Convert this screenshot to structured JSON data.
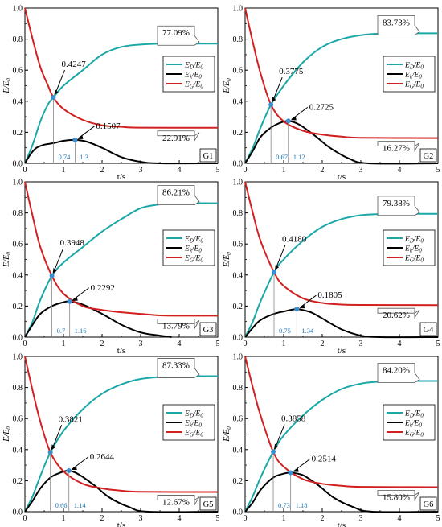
{
  "figure_panels": [
    {
      "tag": "G1",
      "E_D_final": "77.09%",
      "E_G_final": "22.91%",
      "cross1_val": "0.4247",
      "cross1_t": "0.74",
      "kmax_val": "0.1507",
      "kmax_t": "1.3"
    },
    {
      "tag": "G2",
      "E_D_final": "83.73%",
      "E_G_final": "16.27%",
      "cross1_val": "0.3775",
      "cross1_t": "0.67",
      "kmax_val": "0.2725",
      "kmax_t": "1.12"
    },
    {
      "tag": "G3",
      "E_D_final": "86.21%",
      "E_G_final": "13.79%",
      "cross1_val": "0.3948",
      "cross1_t": "0.7",
      "kmax_val": "0.2292",
      "kmax_t": "1.16"
    },
    {
      "tag": "G4",
      "E_D_final": "79.38%",
      "E_G_final": "20.62%",
      "cross1_val": "0.4180",
      "cross1_t": "0.75",
      "kmax_val": "0.1805",
      "kmax_t": "1.34"
    },
    {
      "tag": "G5",
      "E_D_final": "87.33%",
      "E_G_final": "12.67%",
      "cross1_val": "0.3821",
      "cross1_t": "0.66",
      "kmax_val": "0.2644",
      "kmax_t": "1.14"
    },
    {
      "tag": "G6",
      "E_D_final": "84.20%",
      "E_G_final": "15.80%",
      "cross1_val": "0.3858",
      "cross1_t": "0.73",
      "kmax_val": "0.2514",
      "kmax_t": "1.18"
    }
  ],
  "chart_data": [
    {
      "type": "line",
      "tag": "G1",
      "xlabel": "t/s",
      "ylabel": "E/E0",
      "xlim": [
        0,
        5
      ],
      "ylim": [
        0,
        1.0
      ],
      "xticks": [
        "0",
        "1",
        "2",
        "3",
        "4",
        "5"
      ],
      "yticks": [
        "0.0",
        "0.2",
        "0.4",
        "0.6",
        "0.8",
        "1.0"
      ],
      "legend": [
        "ED/E0",
        "Ek/E0",
        "EG/E0"
      ],
      "legend_position": "right-middle",
      "series": [
        {
          "name": "ED/E0",
          "color": "#1aa7a7",
          "x": [
            0,
            0.2,
            0.4,
            0.6,
            0.74,
            1.0,
            1.5,
            2.0,
            2.5,
            3.0,
            3.5,
            4.0,
            5.0
          ],
          "values": [
            0,
            0.12,
            0.27,
            0.38,
            0.4247,
            0.5,
            0.6,
            0.7,
            0.75,
            0.765,
            0.7709,
            0.7709,
            0.7709
          ]
        },
        {
          "name": "Ek/E0",
          "color": "#000000",
          "x": [
            0,
            0.15,
            0.3,
            0.5,
            0.74,
            1.0,
            1.3,
            1.6,
            2.0,
            2.5,
            3.0,
            3.5,
            5.0
          ],
          "values": [
            0,
            0.06,
            0.1,
            0.12,
            0.13,
            0.145,
            0.1507,
            0.14,
            0.1,
            0.04,
            0.01,
            0,
            0
          ]
        },
        {
          "name": "EG/E0",
          "color": "#d22020",
          "x": [
            0,
            0.2,
            0.4,
            0.6,
            0.74,
            1.0,
            1.5,
            2.0,
            2.5,
            3.0,
            5.0
          ],
          "values": [
            1.0,
            0.8,
            0.62,
            0.5,
            0.4247,
            0.35,
            0.28,
            0.245,
            0.235,
            0.23,
            0.2291
          ]
        }
      ],
      "annotations": [
        {
          "text": "0.4247",
          "x": 0.74,
          "y": 0.4247
        },
        {
          "text": "0.1507",
          "x": 1.3,
          "y": 0.1507
        },
        {
          "text": "77.09%",
          "x": 4.5,
          "y": 0.7709
        },
        {
          "text": "22.91%",
          "x": 4.5,
          "y": 0.2291
        },
        {
          "text": "0.74",
          "x": 0.74,
          "y": 0
        },
        {
          "text": "1.3",
          "x": 1.3,
          "y": 0
        }
      ]
    },
    {
      "type": "line",
      "tag": "G2",
      "xlabel": "t/s",
      "ylabel": "E/E0",
      "xlim": [
        0,
        5
      ],
      "ylim": [
        0,
        1.0
      ],
      "xticks": [
        "0",
        "1",
        "2",
        "3",
        "4",
        "5"
      ],
      "yticks": [
        "0.0",
        "0.2",
        "0.4",
        "0.6",
        "0.8",
        "1.0"
      ],
      "legend": [
        "ED/E0",
        "Ek/E0",
        "EG/E0"
      ],
      "legend_position": "right-middle",
      "series": [
        {
          "name": "ED/E0",
          "color": "#1aa7a7",
          "x": [
            0,
            0.2,
            0.4,
            0.67,
            1.0,
            1.5,
            2.0,
            2.5,
            3.0,
            3.5,
            4.0,
            5.0
          ],
          "values": [
            0,
            0.1,
            0.23,
            0.3775,
            0.5,
            0.65,
            0.75,
            0.8,
            0.825,
            0.835,
            0.8373,
            0.8373
          ]
        },
        {
          "name": "Ek/E0",
          "color": "#000000",
          "x": [
            0,
            0.2,
            0.4,
            0.67,
            0.9,
            1.12,
            1.4,
            1.8,
            2.2,
            2.7,
            3.2,
            5.0
          ],
          "values": [
            0,
            0.08,
            0.17,
            0.23,
            0.26,
            0.2725,
            0.25,
            0.18,
            0.1,
            0.03,
            0,
            0
          ]
        },
        {
          "name": "EG/E0",
          "color": "#d22020",
          "x": [
            0,
            0.2,
            0.4,
            0.67,
            1.0,
            1.5,
            2.0,
            2.5,
            3.0,
            5.0
          ],
          "values": [
            1.0,
            0.78,
            0.58,
            0.3775,
            0.27,
            0.21,
            0.185,
            0.172,
            0.165,
            0.1627
          ]
        }
      ],
      "annotations": [
        {
          "text": "0.3775",
          "x": 0.67,
          "y": 0.3775
        },
        {
          "text": "0.2725",
          "x": 1.12,
          "y": 0.2725
        },
        {
          "text": "83.73%",
          "x": 4.5,
          "y": 0.8373
        },
        {
          "text": "16.27%",
          "x": 4.5,
          "y": 0.1627
        },
        {
          "text": "0.67",
          "x": 0.67,
          "y": 0
        },
        {
          "text": "1.12",
          "x": 1.12,
          "y": 0
        }
      ]
    },
    {
      "type": "line",
      "tag": "G3",
      "xlabel": "t/s",
      "ylabel": "E/E0",
      "xlim": [
        0,
        5
      ],
      "ylim": [
        0,
        1.0
      ],
      "xticks": [
        "0",
        "1",
        "2",
        "3",
        "4",
        "5"
      ],
      "yticks": [
        "0.0",
        "0.2",
        "0.4",
        "0.6",
        "0.8",
        "1.0"
      ],
      "legend": [
        "ED/E0",
        "Ek/E0",
        "EG/E0"
      ],
      "legend_position": "right-middle",
      "series": [
        {
          "name": "ED/E0",
          "color": "#1aa7a7",
          "x": [
            0,
            0.2,
            0.4,
            0.7,
            1.0,
            1.5,
            2.0,
            2.5,
            3.0,
            3.5,
            4.0,
            5.0
          ],
          "values": [
            0,
            0.1,
            0.24,
            0.3948,
            0.48,
            0.58,
            0.68,
            0.76,
            0.83,
            0.855,
            0.8621,
            0.8621
          ]
        },
        {
          "name": "Ek/E0",
          "color": "#000000",
          "x": [
            0,
            0.2,
            0.4,
            0.7,
            1.0,
            1.16,
            1.5,
            2.0,
            2.5,
            3.0,
            3.5,
            3.8
          ],
          "values": [
            0,
            0.08,
            0.15,
            0.2,
            0.225,
            0.2292,
            0.21,
            0.15,
            0.08,
            0.03,
            0.01,
            0
          ]
        },
        {
          "name": "EG/E0",
          "color": "#d22020",
          "x": [
            0,
            0.2,
            0.4,
            0.7,
            1.0,
            1.5,
            2.0,
            2.5,
            3.0,
            3.5,
            4.0,
            5.0
          ],
          "values": [
            1.0,
            0.78,
            0.58,
            0.3948,
            0.28,
            0.2,
            0.175,
            0.16,
            0.15,
            0.14,
            0.138,
            0.1379
          ]
        }
      ],
      "annotations": [
        {
          "text": "0.3948",
          "x": 0.7,
          "y": 0.3948
        },
        {
          "text": "0.2292",
          "x": 1.16,
          "y": 0.2292
        },
        {
          "text": "86.21%",
          "x": 4.5,
          "y": 0.8621
        },
        {
          "text": "13.79%",
          "x": 4.5,
          "y": 0.1379
        },
        {
          "text": "0.7",
          "x": 0.7,
          "y": 0
        },
        {
          "text": "1.16",
          "x": 1.16,
          "y": 0
        }
      ]
    },
    {
      "type": "line",
      "tag": "G4",
      "xlabel": "t/s",
      "ylabel": "E/E0",
      "xlim": [
        0,
        5
      ],
      "ylim": [
        0,
        1.0
      ],
      "xticks": [
        "0",
        "1",
        "2",
        "3",
        "4",
        "5"
      ],
      "yticks": [
        "0.0",
        "0.2",
        "0.4",
        "0.6",
        "0.8",
        "1.0"
      ],
      "legend": [
        "ED/E0",
        "Ek/E0",
        "EG/E0"
      ],
      "legend_position": "right-middle",
      "series": [
        {
          "name": "ED/E0",
          "color": "#1aa7a7",
          "x": [
            0,
            0.2,
            0.4,
            0.75,
            1.0,
            1.5,
            2.0,
            2.5,
            3.0,
            3.5,
            4.0,
            5.0
          ],
          "values": [
            0,
            0.1,
            0.23,
            0.418,
            0.5,
            0.62,
            0.71,
            0.76,
            0.785,
            0.792,
            0.7938,
            0.7938
          ]
        },
        {
          "name": "Ek/E0",
          "color": "#000000",
          "x": [
            0,
            0.2,
            0.4,
            0.75,
            1.0,
            1.34,
            1.7,
            2.0,
            2.5,
            3.0,
            3.5,
            5.0
          ],
          "values": [
            0,
            0.06,
            0.11,
            0.15,
            0.165,
            0.1805,
            0.16,
            0.12,
            0.05,
            0.01,
            0,
            0
          ]
        },
        {
          "name": "EG/E0",
          "color": "#d22020",
          "x": [
            0,
            0.2,
            0.4,
            0.75,
            1.0,
            1.5,
            2.0,
            2.5,
            3.0,
            5.0
          ],
          "values": [
            1.0,
            0.8,
            0.62,
            0.418,
            0.33,
            0.25,
            0.22,
            0.21,
            0.207,
            0.2062
          ]
        }
      ],
      "annotations": [
        {
          "text": "0.4180",
          "x": 0.75,
          "y": 0.418
        },
        {
          "text": "0.1805",
          "x": 1.34,
          "y": 0.1805
        },
        {
          "text": "79.38%",
          "x": 4.5,
          "y": 0.7938
        },
        {
          "text": "20.62%",
          "x": 4.5,
          "y": 0.2062
        },
        {
          "text": "0.75",
          "x": 0.75,
          "y": 0
        },
        {
          "text": "1.34",
          "x": 1.34,
          "y": 0
        }
      ]
    },
    {
      "type": "line",
      "tag": "G5",
      "xlabel": "t/s",
      "ylabel": "E/E0",
      "xlim": [
        0,
        5
      ],
      "ylim": [
        0,
        1.0
      ],
      "xticks": [
        "0",
        "1",
        "2",
        "3",
        "4",
        "5"
      ],
      "yticks": [
        "0.0",
        "0.2",
        "0.4",
        "0.6",
        "0.8",
        "1.0"
      ],
      "legend": [
        "ED/E0",
        "Ek/E0",
        "EG/E0"
      ],
      "legend_position": "right-middle",
      "series": [
        {
          "name": "ED/E0",
          "color": "#1aa7a7",
          "x": [
            0,
            0.2,
            0.4,
            0.66,
            1.0,
            1.5,
            2.0,
            2.5,
            3.0,
            3.5,
            4.0,
            5.0
          ],
          "values": [
            0,
            0.1,
            0.23,
            0.3821,
            0.52,
            0.66,
            0.76,
            0.82,
            0.855,
            0.868,
            0.8733,
            0.8733
          ]
        },
        {
          "name": "Ek/E0",
          "color": "#000000",
          "x": [
            0,
            0.2,
            0.4,
            0.66,
            0.9,
            1.14,
            1.4,
            1.8,
            2.2,
            2.7,
            3.2,
            5.0
          ],
          "values": [
            0,
            0.07,
            0.15,
            0.22,
            0.25,
            0.2644,
            0.24,
            0.17,
            0.09,
            0.03,
            0,
            0
          ]
        },
        {
          "name": "EG/E0",
          "color": "#d22020",
          "x": [
            0,
            0.2,
            0.4,
            0.66,
            1.0,
            1.5,
            2.0,
            2.5,
            3.0,
            5.0
          ],
          "values": [
            1.0,
            0.78,
            0.58,
            0.3821,
            0.26,
            0.18,
            0.15,
            0.135,
            0.128,
            0.1267
          ]
        }
      ],
      "annotations": [
        {
          "text": "0.3821",
          "x": 0.66,
          "y": 0.3821
        },
        {
          "text": "0.2644",
          "x": 1.14,
          "y": 0.2644
        },
        {
          "text": "87.33%",
          "x": 4.5,
          "y": 0.8733
        },
        {
          "text": "12.67%",
          "x": 4.5,
          "y": 0.1267
        },
        {
          "text": "0.66",
          "x": 0.66,
          "y": 0
        },
        {
          "text": "1.14",
          "x": 1.14,
          "y": 0
        }
      ]
    },
    {
      "type": "line",
      "tag": "G6",
      "xlabel": "t/s",
      "ylabel": "E/E0",
      "xlim": [
        0,
        5
      ],
      "ylim": [
        0,
        1.0
      ],
      "xticks": [
        "0",
        "1",
        "2",
        "3",
        "4",
        "5"
      ],
      "yticks": [
        "0.0",
        "0.2",
        "0.4",
        "0.6",
        "0.8",
        "1.0"
      ],
      "legend": [
        "ED/E0",
        "Ek/E0",
        "EG/E0"
      ],
      "legend_position": "right-middle",
      "series": [
        {
          "name": "ED/E0",
          "color": "#1aa7a7",
          "x": [
            0,
            0.2,
            0.4,
            0.73,
            1.0,
            1.5,
            2.0,
            2.5,
            3.0,
            3.5,
            4.0,
            5.0
          ],
          "values": [
            0,
            0.1,
            0.22,
            0.3858,
            0.49,
            0.62,
            0.72,
            0.79,
            0.825,
            0.838,
            0.842,
            0.842
          ]
        },
        {
          "name": "Ek/E0",
          "color": "#000000",
          "x": [
            0,
            0.2,
            0.4,
            0.73,
            1.0,
            1.18,
            1.5,
            1.9,
            2.3,
            2.8,
            3.3,
            5.0
          ],
          "values": [
            0,
            0.06,
            0.14,
            0.22,
            0.245,
            0.2514,
            0.235,
            0.17,
            0.09,
            0.03,
            0,
            0
          ]
        },
        {
          "name": "EG/E0",
          "color": "#d22020",
          "x": [
            0,
            0.2,
            0.4,
            0.73,
            1.0,
            1.5,
            2.0,
            2.5,
            3.0,
            5.0
          ],
          "values": [
            1.0,
            0.8,
            0.62,
            0.3858,
            0.29,
            0.21,
            0.18,
            0.167,
            0.16,
            0.158
          ]
        }
      ],
      "annotations": [
        {
          "text": "0.3858",
          "x": 0.73,
          "y": 0.3858
        },
        {
          "text": "0.2514",
          "x": 1.18,
          "y": 0.2514
        },
        {
          "text": "84.20%",
          "x": 4.5,
          "y": 0.842
        },
        {
          "text": "15.80%",
          "x": 4.5,
          "y": 0.158
        },
        {
          "text": "0.73",
          "x": 0.73,
          "y": 0
        },
        {
          "text": "1.18",
          "x": 1.18,
          "y": 0
        }
      ]
    }
  ]
}
